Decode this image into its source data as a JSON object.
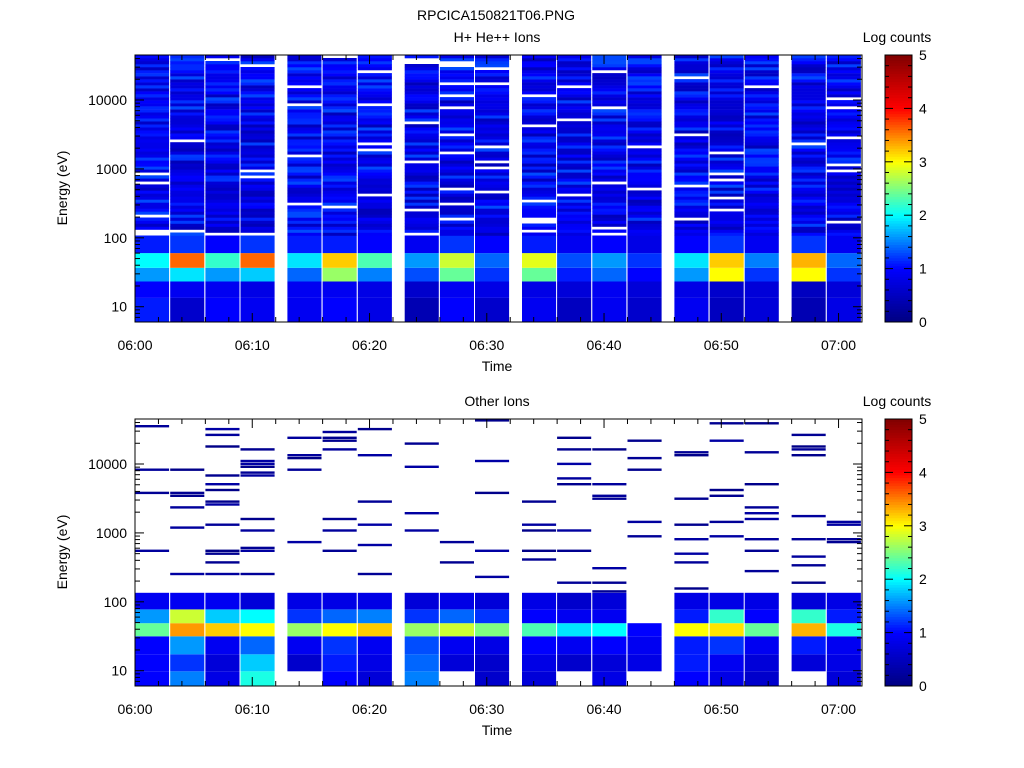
{
  "figure": {
    "title": "RPCICA150821T06.PNG"
  },
  "chart_data": [
    {
      "type": "heatmap",
      "title": "H+ He++ Ions",
      "xlabel": "Time",
      "ylabel": "Energy (eV)",
      "colorbar_label": "Log counts",
      "x_ticks": [
        "06:00",
        "06:10",
        "06:20",
        "06:30",
        "06:40",
        "06:50",
        "07:00"
      ],
      "y_ticks": [
        "10",
        "100",
        "1000",
        "10000"
      ],
      "colorbar_ticks": [
        "0",
        "1",
        "2",
        "3",
        "4",
        "5"
      ],
      "xlim": [
        "06:00",
        "07:02"
      ],
      "ylim": [
        6,
        45000
      ],
      "y_scale": "log",
      "color_range": [
        0,
        5
      ],
      "colormap": [
        "#000080",
        "#0000ff",
        "#00ffff",
        "#ffff00",
        "#ff0000",
        "#800000"
      ],
      "time_bins": [
        "06:00",
        "06:03",
        "06:06",
        "06:09",
        "06:13",
        "06:16",
        "06:19",
        "06:23",
        "06:26",
        "06:29",
        "06:33",
        "06:36",
        "06:39",
        "06:42",
        "06:46",
        "06:49",
        "06:52",
        "06:56",
        "06:59"
      ],
      "energy_bands": [
        {
          "energy_eV": 10,
          "log_counts": [
            1.1,
            0.6,
            1.0,
            0.9,
            0.9,
            1.0,
            0.8,
            0.4,
            1.0,
            0.6,
            0.9,
            0.5,
            0.9,
            0.6,
            0.9,
            0.5,
            0.7,
            0.4,
            0.8
          ]
        },
        {
          "energy_eV": 18,
          "log_counts": [
            1.0,
            0.9,
            0.9,
            0.8,
            0.9,
            0.9,
            0.8,
            0.6,
            0.9,
            0.8,
            0.8,
            0.7,
            0.9,
            0.7,
            0.8,
            0.6,
            0.7,
            0.5,
            0.7
          ]
        },
        {
          "energy_eV": 30,
          "log_counts": [
            1.6,
            1.9,
            1.6,
            1.8,
            1.4,
            2.6,
            1.5,
            1.3,
            2.4,
            1.2,
            2.4,
            1.1,
            1.4,
            1.0,
            1.6,
            3.0,
            1.2,
            3.0,
            1.2
          ]
        },
        {
          "energy_eV": 45,
          "log_counts": [
            2.0,
            3.6,
            2.2,
            3.6,
            1.9,
            3.2,
            2.3,
            1.6,
            2.8,
            1.4,
            2.9,
            1.3,
            1.6,
            1.2,
            1.9,
            3.2,
            1.5,
            3.3,
            1.4
          ]
        },
        {
          "energy_eV": 80,
          "log_counts": [
            1.1,
            1.2,
            1.0,
            1.2,
            1.1,
            1.1,
            1.0,
            0.9,
            1.2,
            1.0,
            1.1,
            0.9,
            1.0,
            0.8,
            1.0,
            1.2,
            0.9,
            1.2,
            0.9
          ]
        }
      ],
      "upper_energy_background": "log counts mostly 0.5–1.3 above 100 eV"
    },
    {
      "type": "heatmap",
      "title": "Other Ions",
      "xlabel": "Time",
      "ylabel": "Energy (eV)",
      "colorbar_label": "Log counts",
      "x_ticks": [
        "06:00",
        "06:10",
        "06:20",
        "06:30",
        "06:40",
        "06:50",
        "07:00"
      ],
      "y_ticks": [
        "10",
        "100",
        "1000",
        "10000"
      ],
      "colorbar_ticks": [
        "0",
        "1",
        "2",
        "3",
        "4",
        "5"
      ],
      "xlim": [
        "06:00",
        "07:02"
      ],
      "ylim": [
        6,
        45000
      ],
      "y_scale": "log",
      "color_range": [
        0,
        5
      ],
      "colormap": [
        "#000080",
        "#0000ff",
        "#00ffff",
        "#ffff00",
        "#ff0000",
        "#800000"
      ],
      "time_bins": [
        "06:00",
        "06:03",
        "06:06",
        "06:09",
        "06:13",
        "06:16",
        "06:19",
        "06:23",
        "06:26",
        "06:29",
        "06:33",
        "06:36",
        "06:39",
        "06:42",
        "06:46",
        "06:49",
        "06:52",
        "06:56",
        "06:59"
      ],
      "energy_bands": [
        {
          "energy_eV": 8,
          "log_counts": [
            1.0,
            1.5,
            0.8,
            2.1,
            null,
            1.0,
            0.7,
            1.5,
            null,
            0.6,
            0.7,
            null,
            0.8,
            null,
            1.0,
            0.8,
            0.6,
            null,
            0.7
          ]
        },
        {
          "energy_eV": 12,
          "log_counts": [
            1.0,
            1.2,
            0.7,
            1.8,
            0.6,
            1.1,
            0.8,
            1.4,
            0.7,
            0.6,
            0.8,
            0.6,
            0.7,
            0.8,
            1.1,
            0.9,
            0.7,
            0.7,
            0.8
          ]
        },
        {
          "energy_eV": 25,
          "log_counts": [
            1.0,
            1.6,
            0.9,
            1.4,
            0.9,
            1.2,
            0.9,
            1.3,
            0.9,
            0.8,
            1.0,
            0.9,
            1.0,
            0.9,
            1.1,
            1.2,
            0.9,
            1.1,
            0.9
          ]
        },
        {
          "energy_eV": 40,
          "log_counts": [
            2.4,
            3.4,
            3.2,
            3.0,
            2.6,
            3.0,
            3.2,
            2.6,
            2.8,
            2.5,
            2.3,
            1.9,
            2.0,
            1.0,
            3.0,
            3.1,
            2.4,
            3.3,
            2.1
          ]
        },
        {
          "energy_eV": 60,
          "log_counts": [
            1.6,
            2.8,
            1.8,
            2.0,
            1.2,
            1.4,
            1.5,
            1.2,
            1.4,
            1.2,
            1.0,
            0.9,
            0.9,
            null,
            1.1,
            2.2,
            1.0,
            2.2,
            1.1
          ]
        },
        {
          "energy_eV": 100,
          "log_counts": [
            0.9,
            0.9,
            0.9,
            0.7,
            0.8,
            0.8,
            0.8,
            0.7,
            0.8,
            0.7,
            0.8,
            0.6,
            0.7,
            null,
            0.8,
            0.8,
            0.8,
            0.7,
            0.8
          ]
        }
      ],
      "upper_energy_background": "sparse single-count lines (log counts ≈ 0.1–0.3) above 200 eV"
    }
  ]
}
